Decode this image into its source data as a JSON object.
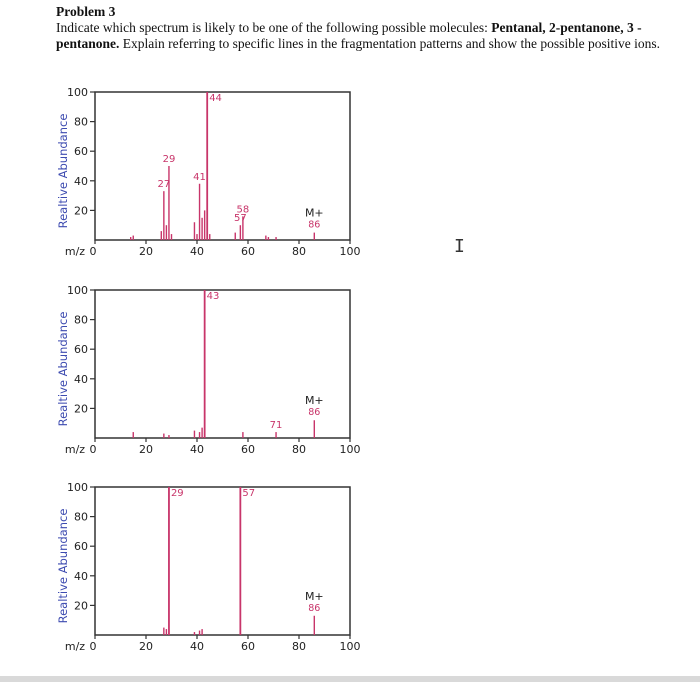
{
  "problem": {
    "title": "Problem 3",
    "line1_prefix": "Indicate which spectrum is likely to be one of the following possible molecules: ",
    "bold1": "Pentanal, 2-pentanone, 3 -pentanone.",
    "line_rest": "  Explain referring to specific lines in the fragmentation patterns and show the possible positive ions."
  },
  "chart_data": [
    {
      "type": "bar",
      "ylabel": "Realtive Abundance",
      "xlabel": "m/z",
      "xlim": [
        0,
        100
      ],
      "ylim": [
        0,
        100
      ],
      "x_ticks": [
        0,
        20,
        40,
        60,
        80,
        100
      ],
      "x_tick_labels": [
        "0",
        "20",
        "40",
        "60",
        "80",
        "100"
      ],
      "y_ticks": [
        100,
        80,
        60,
        40,
        20
      ],
      "x": [
        14,
        15,
        26,
        27,
        28,
        29,
        30,
        39,
        40,
        41,
        42,
        43,
        44,
        45,
        55,
        57,
        58,
        67,
        68,
        71,
        86
      ],
      "values": [
        2,
        3,
        6,
        33,
        10,
        50,
        4,
        12,
        4,
        38,
        15,
        20,
        100,
        4,
        5,
        10,
        16,
        3,
        2,
        2,
        5
      ],
      "labels": [
        {
          "x": 27,
          "text": "27"
        },
        {
          "x": 29,
          "text": "29"
        },
        {
          "x": 41,
          "text": "41"
        },
        {
          "x": 44,
          "text": "44"
        },
        {
          "x": 57,
          "text": "57"
        },
        {
          "x": 58,
          "text": "58"
        }
      ],
      "molecular_ion": {
        "x": 86,
        "text": "M+",
        "mass": "86"
      }
    },
    {
      "type": "bar",
      "ylabel": "Realtive Abundance",
      "xlabel": "m/z",
      "xlim": [
        0,
        100
      ],
      "ylim": [
        0,
        100
      ],
      "x_ticks": [
        0,
        20,
        40,
        60,
        80,
        100
      ],
      "x_tick_labels": [
        "0",
        "20",
        "40",
        "60",
        "80",
        "100"
      ],
      "y_ticks": [
        100,
        80,
        60,
        40,
        20
      ],
      "x": [
        15,
        27,
        29,
        39,
        41,
        42,
        43,
        58,
        71,
        86
      ],
      "values": [
        4,
        3,
        2,
        5,
        4,
        7,
        100,
        4,
        4,
        12
      ],
      "labels": [
        {
          "x": 43,
          "text": "43"
        },
        {
          "x": 71,
          "text": "71"
        }
      ],
      "molecular_ion": {
        "x": 86,
        "text": "M+",
        "mass": "86"
      }
    },
    {
      "type": "bar",
      "ylabel": "Realtive Abundance",
      "xlabel": "m/z",
      "xlim": [
        0,
        100
      ],
      "ylim": [
        0,
        100
      ],
      "x_ticks": [
        0,
        20,
        40,
        60,
        80,
        100
      ],
      "x_tick_labels": [
        "0",
        "20",
        "40",
        "60",
        "80",
        "100"
      ],
      "y_ticks": [
        100,
        80,
        60,
        40,
        20
      ],
      "x": [
        27,
        28,
        29,
        39,
        41,
        42,
        57,
        86
      ],
      "values": [
        5,
        4,
        100,
        2,
        3,
        4,
        100,
        13
      ],
      "labels": [
        {
          "x": 29,
          "text": "29"
        },
        {
          "x": 57,
          "text": "57"
        }
      ],
      "molecular_ion": {
        "x": 86,
        "text": "M+",
        "mass": "86"
      }
    }
  ],
  "colors": {
    "bar": "#c8356a",
    "axis": "#333333",
    "label": "#c8356a",
    "ylabel": "#3d4bb0",
    "tick": "#222222"
  },
  "cursor_glyph": "I"
}
